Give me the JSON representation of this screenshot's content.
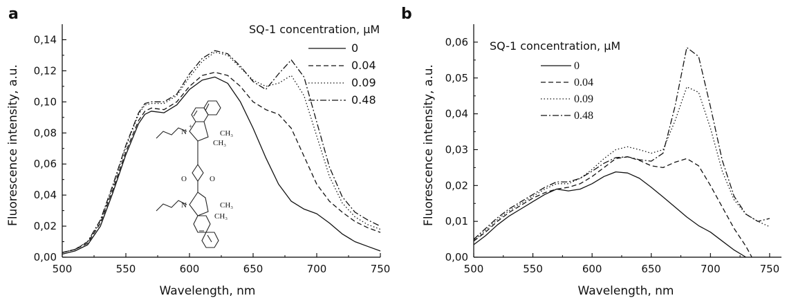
{
  "chart_data": [
    {
      "panel_label": "a",
      "type": "line",
      "xlabel": "Wavelength, nm",
      "ylabel": "Fluorescence intensity, a.u.",
      "xlim": [
        500,
        750
      ],
      "ylim": [
        0,
        0.15
      ],
      "xticks": [
        500,
        550,
        600,
        650,
        700,
        750
      ],
      "yticks": [
        0,
        0.02,
        0.04,
        0.06,
        0.08,
        0.1,
        0.12,
        0.14
      ],
      "xtick_labels": [
        "500",
        "550",
        "600",
        "650",
        "700",
        "750"
      ],
      "ytick_labels": [
        "0,00",
        "0,02",
        "0,04",
        "0,06",
        "0,08",
        "0,10",
        "0,12",
        "0,14"
      ],
      "legend_title": "SQ-1 concentration, μM",
      "legend_position": "top-right",
      "grid": false,
      "series": [
        {
          "name": "0",
          "style": "solid",
          "points": [
            [
              500,
              0.002
            ],
            [
              510,
              0.004
            ],
            [
              520,
              0.008
            ],
            [
              530,
              0.02
            ],
            [
              540,
              0.042
            ],
            [
              550,
              0.066
            ],
            [
              560,
              0.086
            ],
            [
              565,
              0.092
            ],
            [
              570,
              0.094
            ],
            [
              580,
              0.093
            ],
            [
              590,
              0.098
            ],
            [
              600,
              0.108
            ],
            [
              610,
              0.114
            ],
            [
              620,
              0.116
            ],
            [
              630,
              0.112
            ],
            [
              640,
              0.1
            ],
            [
              650,
              0.083
            ],
            [
              660,
              0.064
            ],
            [
              670,
              0.047
            ],
            [
              680,
              0.036
            ],
            [
              690,
              0.031
            ],
            [
              700,
              0.028
            ],
            [
              710,
              0.022
            ],
            [
              720,
              0.015
            ],
            [
              730,
              0.01
            ],
            [
              740,
              0.007
            ],
            [
              750,
              0.004
            ]
          ]
        },
        {
          "name": "0.04",
          "style": "dashed",
          "points": [
            [
              500,
              0.003
            ],
            [
              510,
              0.005
            ],
            [
              520,
              0.009
            ],
            [
              530,
              0.022
            ],
            [
              540,
              0.044
            ],
            [
              550,
              0.068
            ],
            [
              560,
              0.088
            ],
            [
              565,
              0.094
            ],
            [
              570,
              0.096
            ],
            [
              580,
              0.095
            ],
            [
              590,
              0.1
            ],
            [
              600,
              0.11
            ],
            [
              610,
              0.117
            ],
            [
              620,
              0.119
            ],
            [
              630,
              0.117
            ],
            [
              640,
              0.11
            ],
            [
              650,
              0.1
            ],
            [
              660,
              0.095
            ],
            [
              670,
              0.092
            ],
            [
              680,
              0.083
            ],
            [
              690,
              0.065
            ],
            [
              700,
              0.047
            ],
            [
              710,
              0.036
            ],
            [
              720,
              0.029
            ],
            [
              730,
              0.023
            ],
            [
              740,
              0.019
            ],
            [
              750,
              0.016
            ]
          ]
        },
        {
          "name": "0.09",
          "style": "dotted",
          "points": [
            [
              500,
              0.003
            ],
            [
              510,
              0.005
            ],
            [
              520,
              0.01
            ],
            [
              530,
              0.023
            ],
            [
              540,
              0.046
            ],
            [
              550,
              0.071
            ],
            [
              560,
              0.092
            ],
            [
              565,
              0.098
            ],
            [
              570,
              0.099
            ],
            [
              580,
              0.099
            ],
            [
              590,
              0.104
            ],
            [
              600,
              0.116
            ],
            [
              610,
              0.126
            ],
            [
              620,
              0.132
            ],
            [
              630,
              0.13
            ],
            [
              640,
              0.122
            ],
            [
              650,
              0.114
            ],
            [
              660,
              0.11
            ],
            [
              670,
              0.112
            ],
            [
              680,
              0.117
            ],
            [
              690,
              0.104
            ],
            [
              700,
              0.078
            ],
            [
              710,
              0.052
            ],
            [
              720,
              0.035
            ],
            [
              730,
              0.026
            ],
            [
              740,
              0.021
            ],
            [
              750,
              0.018
            ]
          ]
        },
        {
          "name": "0.48",
          "style": "dashdot",
          "points": [
            [
              500,
              0.003
            ],
            [
              510,
              0.005
            ],
            [
              520,
              0.01
            ],
            [
              530,
              0.024
            ],
            [
              540,
              0.047
            ],
            [
              550,
              0.072
            ],
            [
              560,
              0.093
            ],
            [
              565,
              0.099
            ],
            [
              570,
              0.1
            ],
            [
              580,
              0.1
            ],
            [
              590,
              0.105
            ],
            [
              600,
              0.118
            ],
            [
              610,
              0.128
            ],
            [
              620,
              0.133
            ],
            [
              630,
              0.131
            ],
            [
              640,
              0.123
            ],
            [
              650,
              0.113
            ],
            [
              660,
              0.108
            ],
            [
              670,
              0.118
            ],
            [
              680,
              0.127
            ],
            [
              690,
              0.116
            ],
            [
              700,
              0.087
            ],
            [
              710,
              0.058
            ],
            [
              720,
              0.039
            ],
            [
              730,
              0.029
            ],
            [
              740,
              0.024
            ],
            [
              750,
              0.02
            ]
          ]
        }
      ],
      "inset": {
        "type": "structure-drawing",
        "labels": [
          "N",
          "+",
          "CH₃",
          "CH₃",
          "O",
          "O",
          "N",
          "CH₃",
          "CH₃"
        ]
      }
    },
    {
      "panel_label": "b",
      "type": "line",
      "xlabel": "Wavelength, nm",
      "ylabel": "Fluorescence intensity, a.u.",
      "xlim": [
        500,
        760
      ],
      "ylim": [
        0,
        0.065
      ],
      "xticks": [
        500,
        550,
        600,
        650,
        700,
        750
      ],
      "yticks": [
        0,
        0.01,
        0.02,
        0.03,
        0.04,
        0.05,
        0.06
      ],
      "xtick_labels": [
        "500",
        "550",
        "600",
        "650",
        "700",
        "750"
      ],
      "ytick_labels": [
        "0,00",
        "0,01",
        "0,02",
        "0,03",
        "0,04",
        "0,05",
        "0,06"
      ],
      "legend_title": "SQ-1 concentration, μM",
      "legend_position": "top-left",
      "grid": false,
      "series": [
        {
          "name": "0",
          "style": "solid",
          "points": [
            [
              500,
              0.0035
            ],
            [
              510,
              0.006
            ],
            [
              520,
              0.009
            ],
            [
              530,
              0.0115
            ],
            [
              540,
              0.0135
            ],
            [
              550,
              0.0155
            ],
            [
              560,
              0.0175
            ],
            [
              570,
              0.019
            ],
            [
              580,
              0.0185
            ],
            [
              590,
              0.019
            ],
            [
              600,
              0.0205
            ],
            [
              610,
              0.0225
            ],
            [
              620,
              0.0238
            ],
            [
              630,
              0.0235
            ],
            [
              640,
              0.022
            ],
            [
              650,
              0.0195
            ],
            [
              660,
              0.0168
            ],
            [
              670,
              0.014
            ],
            [
              680,
              0.0112
            ],
            [
              690,
              0.0088
            ],
            [
              700,
              0.007
            ],
            [
              710,
              0.0045
            ],
            [
              720,
              0.002
            ],
            [
              730,
              0.0
            ]
          ]
        },
        {
          "name": "0.04",
          "style": "dashed",
          "points": [
            [
              500,
              0.0045
            ],
            [
              510,
              0.007
            ],
            [
              520,
              0.01
            ],
            [
              530,
              0.0125
            ],
            [
              540,
              0.0145
            ],
            [
              550,
              0.0165
            ],
            [
              560,
              0.018
            ],
            [
              570,
              0.019
            ],
            [
              580,
              0.0195
            ],
            [
              590,
              0.0205
            ],
            [
              600,
              0.0225
            ],
            [
              610,
              0.025
            ],
            [
              620,
              0.0275
            ],
            [
              630,
              0.028
            ],
            [
              640,
              0.027
            ],
            [
              650,
              0.0255
            ],
            [
              660,
              0.025
            ],
            [
              670,
              0.0265
            ],
            [
              680,
              0.0275
            ],
            [
              690,
              0.0255
            ],
            [
              700,
              0.02
            ],
            [
              710,
              0.014
            ],
            [
              720,
              0.008
            ],
            [
              730,
              0.003
            ],
            [
              735,
              0.0
            ]
          ]
        },
        {
          "name": "0.09",
          "style": "dotted",
          "points": [
            [
              500,
              0.0045
            ],
            [
              510,
              0.0075
            ],
            [
              520,
              0.0105
            ],
            [
              530,
              0.013
            ],
            [
              540,
              0.015
            ],
            [
              550,
              0.017
            ],
            [
              560,
              0.019
            ],
            [
              570,
              0.0205
            ],
            [
              580,
              0.0205
            ],
            [
              590,
              0.022
            ],
            [
              600,
              0.0245
            ],
            [
              610,
              0.0275
            ],
            [
              620,
              0.03
            ],
            [
              630,
              0.0308
            ],
            [
              640,
              0.03
            ],
            [
              650,
              0.029
            ],
            [
              660,
              0.03
            ],
            [
              670,
              0.038
            ],
            [
              680,
              0.0475
            ],
            [
              690,
              0.046
            ],
            [
              700,
              0.036
            ],
            [
              710,
              0.024
            ],
            [
              720,
              0.016
            ],
            [
              730,
              0.012
            ],
            [
              740,
              0.01
            ],
            [
              750,
              0.0085
            ]
          ]
        },
        {
          "name": "0.48",
          "style": "dashdot",
          "points": [
            [
              500,
              0.005
            ],
            [
              510,
              0.008
            ],
            [
              520,
              0.011
            ],
            [
              530,
              0.0135
            ],
            [
              540,
              0.0155
            ],
            [
              550,
              0.0175
            ],
            [
              560,
              0.0195
            ],
            [
              570,
              0.021
            ],
            [
              580,
              0.021
            ],
            [
              590,
              0.022
            ],
            [
              600,
              0.024
            ],
            [
              610,
              0.0262
            ],
            [
              620,
              0.0278
            ],
            [
              630,
              0.028
            ],
            [
              640,
              0.0272
            ],
            [
              650,
              0.0268
            ],
            [
              660,
              0.029
            ],
            [
              670,
              0.042
            ],
            [
              680,
              0.0585
            ],
            [
              690,
              0.056
            ],
            [
              700,
              0.042
            ],
            [
              710,
              0.027
            ],
            [
              720,
              0.017
            ],
            [
              730,
              0.012
            ],
            [
              740,
              0.01
            ],
            [
              750,
              0.0108
            ]
          ]
        }
      ]
    }
  ]
}
